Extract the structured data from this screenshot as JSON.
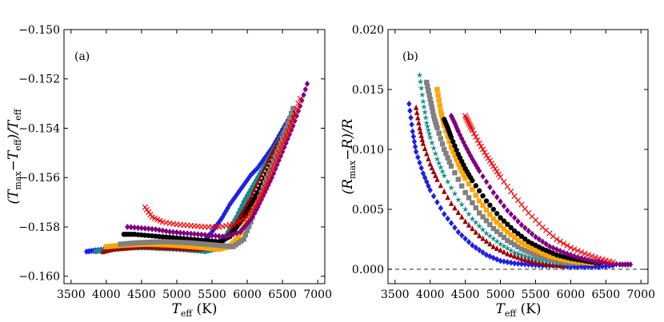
{
  "chart_data": [
    {
      "id": "a",
      "type": "scatter",
      "panel_label": "(a)",
      "xlabel": {
        "main": "T",
        "sub": "eff",
        "unit": " (K)"
      },
      "ylabel": {
        "prefix": "(T",
        "sub1": "max",
        "mid": "−T",
        "sub2": "eff",
        "mid2": ")/T",
        "sub3": "eff"
      },
      "xlim": [
        3400,
        7100
      ],
      "ylim": [
        -0.1603,
        -0.15
      ],
      "xticks": [
        3500,
        4000,
        4500,
        5000,
        5500,
        6000,
        6500,
        7000
      ],
      "xtick_labels": [
        "3500",
        "4000",
        "4500",
        "5000",
        "5500",
        "6000",
        "6500",
        "7000"
      ],
      "yticks": [
        -0.16,
        -0.158,
        -0.156,
        -0.154,
        -0.152,
        -0.15
      ],
      "ytick_labels": [
        "−0.160",
        "−0.158",
        "−0.156",
        "−0.154",
        "−0.152",
        "−0.150"
      ],
      "series": [
        {
          "name": "blue",
          "color": "#1f1fe8",
          "marker": "diamond",
          "x": [
            3720,
            3850,
            4000,
            4200,
            4400,
            4600,
            4800,
            5000,
            5200,
            5350,
            5450,
            5550,
            5650,
            5750,
            5850,
            5950,
            6050,
            6150,
            6250,
            6350,
            6450,
            6550,
            6650
          ],
          "y": [
            -0.159,
            -0.15895,
            -0.1589,
            -0.15885,
            -0.1588,
            -0.15882,
            -0.15885,
            -0.1589,
            -0.15892,
            -0.1588,
            -0.1584,
            -0.158,
            -0.1576,
            -0.1571,
            -0.1567,
            -0.1563,
            -0.1559,
            -0.1556,
            -0.1552,
            -0.1548,
            -0.1543,
            -0.1538,
            -0.1533
          ]
        },
        {
          "name": "teal",
          "color": "#138c8c",
          "marker": "circle",
          "x": [
            3850,
            4000,
            4200,
            4400,
            4600,
            4800,
            5000,
            5200,
            5400,
            5550,
            5650,
            5750,
            5850,
            5950,
            6050,
            6150,
            6250,
            6350,
            6450,
            6550
          ],
          "y": [
            -0.159,
            -0.15892,
            -0.15888,
            -0.15885,
            -0.15885,
            -0.15888,
            -0.1589,
            -0.15895,
            -0.159,
            -0.1589,
            -0.1586,
            -0.1581,
            -0.1576,
            -0.157,
            -0.1565,
            -0.156,
            -0.1555,
            -0.155,
            -0.1545,
            -0.154
          ]
        },
        {
          "name": "darkred",
          "color": "#a00000",
          "marker": "triangle",
          "x": [
            3950,
            4100,
            4300,
            4500,
            4700,
            4900,
            5100,
            5300,
            5500,
            5650,
            5750,
            5850,
            5950,
            6050,
            6150,
            6250,
            6350,
            6450,
            6550
          ],
          "y": [
            -0.159,
            -0.1589,
            -0.15885,
            -0.1588,
            -0.15882,
            -0.15885,
            -0.15888,
            -0.1589,
            -0.15885,
            -0.1586,
            -0.1582,
            -0.1578,
            -0.1573,
            -0.1568,
            -0.1562,
            -0.1556,
            -0.155,
            -0.1545,
            -0.154
          ]
        },
        {
          "name": "orange",
          "color": "#ffa500",
          "marker": "square",
          "x": [
            4000,
            4200,
            4400,
            4600,
            4800,
            5000,
            5200,
            5400,
            5600,
            5750,
            5850,
            5950,
            6050,
            6150,
            6250,
            6350,
            6450,
            6550,
            6650
          ],
          "y": [
            -0.1588,
            -0.15875,
            -0.15872,
            -0.1587,
            -0.15872,
            -0.15875,
            -0.1588,
            -0.15885,
            -0.1589,
            -0.1588,
            -0.1585,
            -0.158,
            -0.1574,
            -0.1568,
            -0.1562,
            -0.1556,
            -0.1549,
            -0.1542,
            -0.1535
          ]
        },
        {
          "name": "black",
          "color": "#000000",
          "marker": "circle",
          "x": [
            4250,
            4400,
            4600,
            4800,
            5000,
            5200,
            5400,
            5600,
            5750,
            5850,
            5950,
            6050,
            6150,
            6250,
            6350,
            6450,
            6550,
            6650
          ],
          "y": [
            -0.1583,
            -0.1583,
            -0.15835,
            -0.1584,
            -0.15845,
            -0.1585,
            -0.15855,
            -0.1586,
            -0.1584,
            -0.158,
            -0.1576,
            -0.1571,
            -0.1566,
            -0.156,
            -0.1554,
            -0.1548,
            -0.1541,
            -0.1534
          ]
        },
        {
          "name": "gray",
          "color": "#808080",
          "marker": "square",
          "x": [
            4200,
            4400,
            4600,
            4800,
            5000,
            5200,
            5400,
            5600,
            5800,
            5950,
            6050,
            6150,
            6250,
            6350,
            6450,
            6550,
            6650
          ],
          "y": [
            -0.1587,
            -0.15865,
            -0.15862,
            -0.1586,
            -0.15862,
            -0.15865,
            -0.1587,
            -0.15875,
            -0.1588,
            -0.1585,
            -0.1578,
            -0.157,
            -0.1562,
            -0.1555,
            -0.1548,
            -0.154,
            -0.1532
          ]
        },
        {
          "name": "purple",
          "color": "#800080",
          "marker": "diamond",
          "x": [
            4300,
            4500,
            4700,
            4900,
            5100,
            5300,
            5500,
            5700,
            5900,
            6050,
            6150,
            6250,
            6350,
            6450,
            6550,
            6650,
            6750,
            6850
          ],
          "y": [
            -0.158,
            -0.15805,
            -0.1581,
            -0.1582,
            -0.15825,
            -0.1583,
            -0.15835,
            -0.1584,
            -0.1582,
            -0.1577,
            -0.1572,
            -0.1566,
            -0.156,
            -0.1553,
            -0.1546,
            -0.1539,
            -0.1531,
            -0.1522
          ]
        },
        {
          "name": "red",
          "color": "#ff0000",
          "marker": "x",
          "x": [
            4550,
            4650,
            4800,
            5000,
            5200,
            5400,
            5600,
            5800,
            6000,
            6150,
            6250,
            6350,
            6450,
            6550,
            6650,
            6750
          ],
          "y": [
            -0.1572,
            -0.1576,
            -0.1578,
            -0.1579,
            -0.15795,
            -0.158,
            -0.158,
            -0.1579,
            -0.1576,
            -0.157,
            -0.1564,
            -0.1557,
            -0.155,
            -0.1543,
            -0.1536,
            -0.1528
          ]
        }
      ]
    },
    {
      "id": "b",
      "type": "scatter",
      "panel_label": "(b)",
      "xlabel": {
        "main": "T",
        "sub": "eff",
        "unit": " (K)"
      },
      "ylabel": {
        "prefix": "(R",
        "sub1": "max",
        "mid": "−R)/R"
      },
      "xlim": [
        3400,
        7100
      ],
      "ylim": [
        -0.0012,
        0.02
      ],
      "xticks": [
        3500,
        4000,
        4500,
        5000,
        5500,
        6000,
        6500,
        7000
      ],
      "xtick_labels": [
        "3500",
        "4000",
        "4500",
        "5000",
        "5500",
        "6000",
        "6500",
        "7000"
      ],
      "yticks": [
        0.0,
        0.005,
        0.01,
        0.015,
        0.02
      ],
      "ytick_labels": [
        "0.000",
        "0.005",
        "0.010",
        "0.015",
        "0.020"
      ],
      "reference_line": {
        "y": 0.0,
        "style": "dashed",
        "color": "#555555"
      },
      "series": [
        {
          "name": "blue",
          "color": "#1f1fe8",
          "marker": "diamond",
          "x": [
            3700,
            3750,
            3800,
            3900,
            4000,
            4200,
            4400,
            4600,
            4800,
            5000,
            5200,
            5400,
            5600,
            5800,
            6000,
            6200,
            6400,
            6600
          ],
          "y": [
            0.0138,
            0.0115,
            0.0098,
            0.008,
            0.0066,
            0.0046,
            0.0031,
            0.002,
            0.0012,
            0.0007,
            0.0005,
            0.0004,
            0.0003,
            0.0003,
            0.0002,
            0.0002,
            0.0002,
            0.0003
          ]
        },
        {
          "name": "darkred",
          "color": "#a00000",
          "marker": "triangle",
          "x": [
            3800,
            3850,
            3900,
            4000,
            4100,
            4300,
            4500,
            4700,
            4900,
            5100,
            5300,
            5500,
            5700,
            5900
          ],
          "y": [
            0.0135,
            0.0118,
            0.0105,
            0.0088,
            0.0075,
            0.0055,
            0.004,
            0.0028,
            0.0019,
            0.0013,
            0.0009,
            0.0006,
            0.0004,
            0.0003
          ]
        },
        {
          "name": "teal",
          "color": "#138c8c",
          "marker": "star",
          "x": [
            3850,
            3900,
            3950,
            4000,
            4100,
            4200,
            4400,
            4600,
            4800,
            5000,
            5200,
            5400,
            5600,
            5800,
            6000
          ],
          "y": [
            0.0162,
            0.014,
            0.0122,
            0.011,
            0.0092,
            0.0078,
            0.0058,
            0.0042,
            0.003,
            0.0021,
            0.0014,
            0.001,
            0.0007,
            0.0005,
            0.0004
          ]
        },
        {
          "name": "gray",
          "color": "#808080",
          "marker": "square",
          "x": [
            3950,
            4000,
            4050,
            4100,
            4200,
            4300,
            4500,
            4700,
            4900,
            5100,
            5300,
            5500,
            5700,
            5900,
            6100
          ],
          "y": [
            0.0156,
            0.0142,
            0.0128,
            0.0118,
            0.01,
            0.0086,
            0.0064,
            0.0047,
            0.0034,
            0.0024,
            0.0017,
            0.0012,
            0.0008,
            0.0006,
            0.0005
          ]
        },
        {
          "name": "orange",
          "color": "#ffa500",
          "marker": "square",
          "x": [
            4100,
            4150,
            4200,
            4300,
            4400,
            4500,
            4700,
            4900,
            5100,
            5300,
            5500,
            5700,
            5900,
            6100,
            6300
          ],
          "y": [
            0.015,
            0.0132,
            0.012,
            0.0102,
            0.0088,
            0.0076,
            0.0057,
            0.0042,
            0.0031,
            0.0022,
            0.0016,
            0.0011,
            0.0008,
            0.0006,
            0.0005
          ]
        },
        {
          "name": "black",
          "color": "#000000",
          "marker": "circle",
          "x": [
            4200,
            4250,
            4300,
            4400,
            4500,
            4600,
            4800,
            5000,
            5200,
            5400,
            5600,
            5800,
            6000,
            6200,
            6400
          ],
          "y": [
            0.0125,
            0.0118,
            0.011,
            0.0096,
            0.0084,
            0.0074,
            0.0057,
            0.0043,
            0.0032,
            0.0023,
            0.0017,
            0.0012,
            0.0009,
            0.0007,
            0.0005
          ]
        },
        {
          "name": "purple",
          "color": "#800080",
          "marker": "diamond",
          "x": [
            4300,
            4350,
            4400,
            4500,
            4600,
            4700,
            4900,
            5100,
            5300,
            5500,
            5700,
            5900,
            6100,
            6300,
            6500,
            6700,
            6850
          ],
          "y": [
            0.0128,
            0.0122,
            0.0115,
            0.0103,
            0.0092,
            0.0082,
            0.0064,
            0.0049,
            0.0037,
            0.0027,
            0.0019,
            0.0014,
            0.001,
            0.0007,
            0.0005,
            0.0004,
            0.0004
          ]
        },
        {
          "name": "red",
          "color": "#ff0000",
          "marker": "x",
          "x": [
            4500,
            4550,
            4600,
            4700,
            4800,
            4900,
            5000,
            5200,
            5400,
            5600,
            5800,
            6000,
            6200,
            6400,
            6600
          ],
          "y": [
            0.0128,
            0.0122,
            0.0116,
            0.0105,
            0.0095,
            0.0086,
            0.0077,
            0.0061,
            0.0047,
            0.0035,
            0.0025,
            0.0018,
            0.0013,
            0.0009,
            0.0006
          ]
        }
      ]
    }
  ]
}
